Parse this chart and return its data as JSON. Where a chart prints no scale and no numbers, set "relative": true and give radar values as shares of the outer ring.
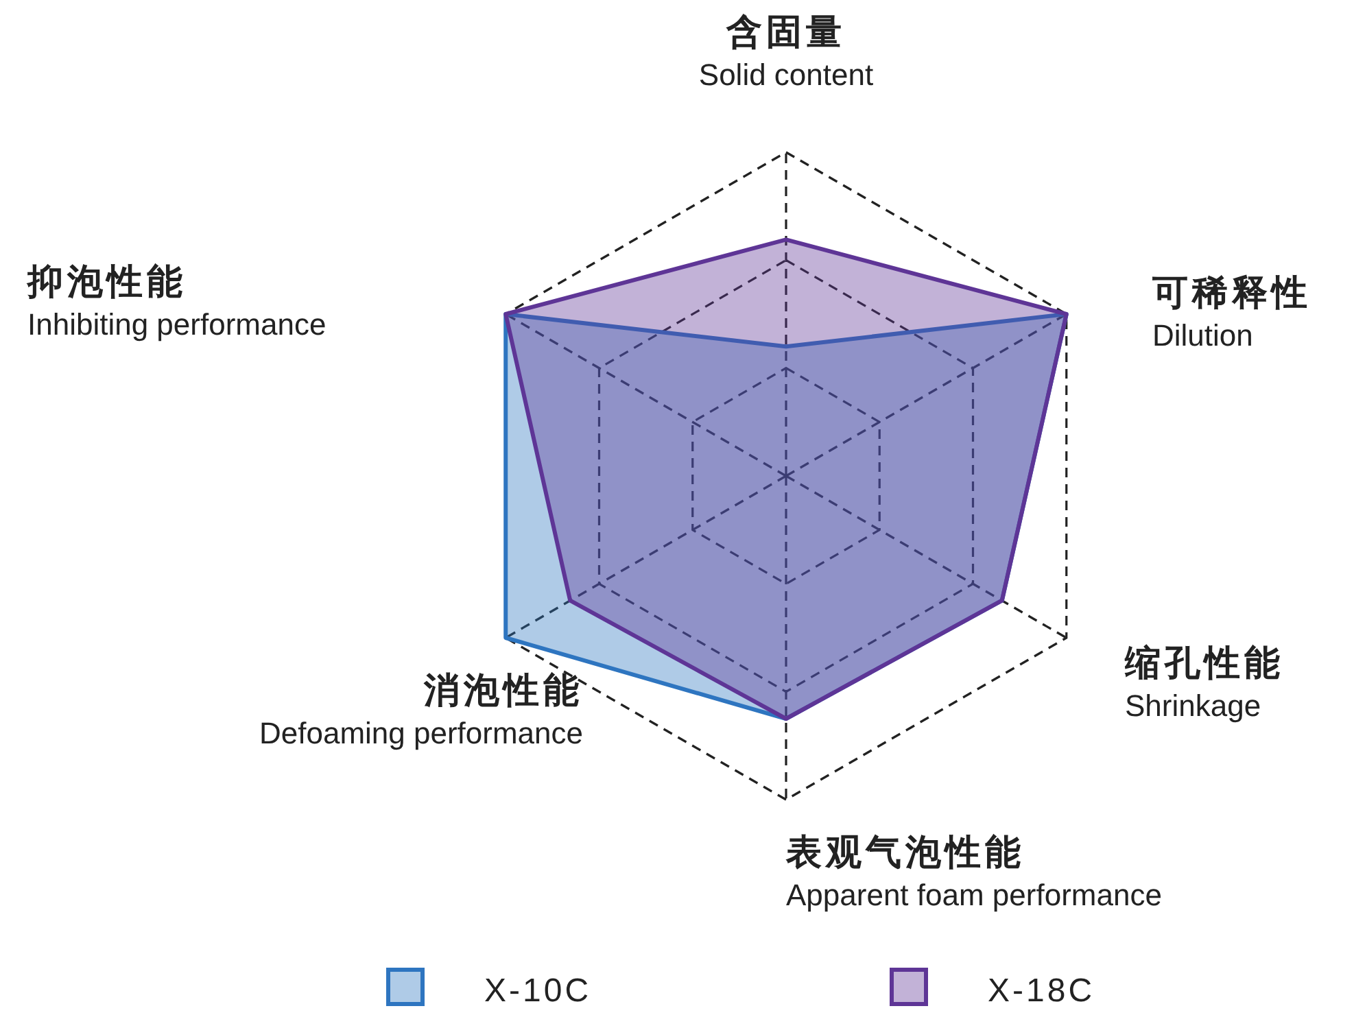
{
  "chart_data": {
    "type": "radar",
    "relative": true,
    "legend": "bottom",
    "categories": [
      "含固量\nSolid content",
      "可稀释性\nDilution",
      "缩孔性能\nShrinkage",
      "表观气泡性能\nApparent foam performance",
      "消泡性能\nDefoaming performance",
      "抑泡性能\nInhibiting performance"
    ],
    "series": [
      {
        "name": "X-10C",
        "color": "#2e75c0",
        "values": [
          0.4,
          1,
          0.77,
          0.75,
          1,
          1
        ]
      },
      {
        "name": "X-18C",
        "color": "#5e3596",
        "values": [
          0.73,
          1,
          0.77,
          0.75,
          0.77,
          1
        ]
      }
    ]
  }
}
